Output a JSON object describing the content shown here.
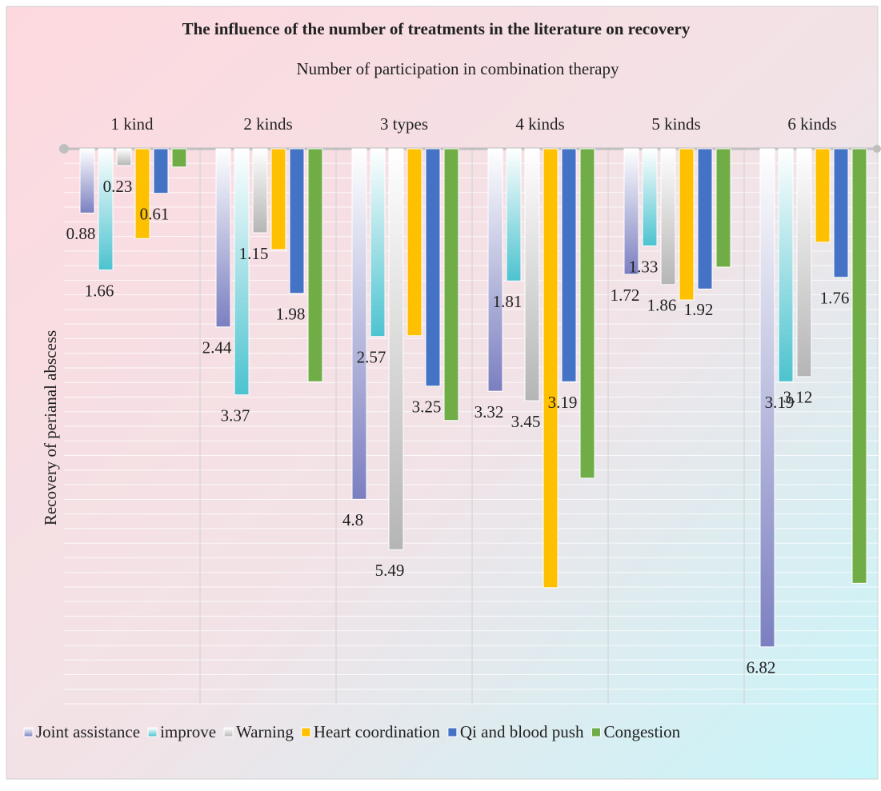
{
  "chart_data": {
    "type": "bar",
    "orientation": "reversed",
    "title": "The influence of the number of treatments in the literature on recovery",
    "x_label": "Number of participation in combination therapy",
    "y_label": "Recovery of perianal abscess",
    "categories": [
      "1 kind",
      "2 kinds",
      "3 types",
      "4 kinds",
      "5 kinds",
      "6 kinds"
    ],
    "series": [
      {
        "name": "Joint assistance",
        "color": "#7b7fc0",
        "gradient": true,
        "labels": true,
        "values": [
          0.88,
          2.44,
          4.8,
          3.32,
          1.72,
          6.82
        ]
      },
      {
        "name": "improve",
        "color": "#4cc3cf",
        "gradient": true,
        "labels": true,
        "values": [
          1.66,
          3.37,
          2.57,
          1.81,
          1.33,
          3.19
        ]
      },
      {
        "name": "Warning",
        "color": "#b5b5b5",
        "gradient": true,
        "labels": true,
        "values": [
          0.23,
          1.15,
          5.49,
          3.45,
          1.86,
          3.12
        ]
      },
      {
        "name": "Heart coordination",
        "color": "#ffc000",
        "gradient": false,
        "labels": false,
        "values": [
          1.23,
          1.38,
          2.56,
          6.01,
          2.07,
          1.28
        ]
      },
      {
        "name": "Qi and blood push",
        "color": "#4472c4",
        "gradient": false,
        "labels": true,
        "values": [
          0.61,
          1.98,
          3.25,
          3.19,
          1.92,
          1.76
        ]
      },
      {
        "name": "Congestion",
        "color": "#70ad47",
        "gradient": false,
        "labels": false,
        "values": [
          0.25,
          3.19,
          3.72,
          4.51,
          1.62,
          5.95
        ]
      }
    ],
    "ylim": [
      0,
      7.6
    ],
    "yticks": [
      0,
      0.2,
      0.4,
      0.6,
      0.8,
      1,
      1.2,
      1.4,
      1.6,
      1.8,
      2,
      2.2,
      2.4,
      2.6,
      2.8,
      3,
      3.2,
      3.4,
      3.6,
      3.8,
      4,
      4.2,
      4.4,
      4.6,
      4.8,
      5,
      5.2,
      5.4,
      5.6,
      5.8,
      6,
      6.2,
      6.4,
      6.6,
      6.8,
      7,
      7.2,
      7.4,
      7.6
    ],
    "grid": true
  }
}
